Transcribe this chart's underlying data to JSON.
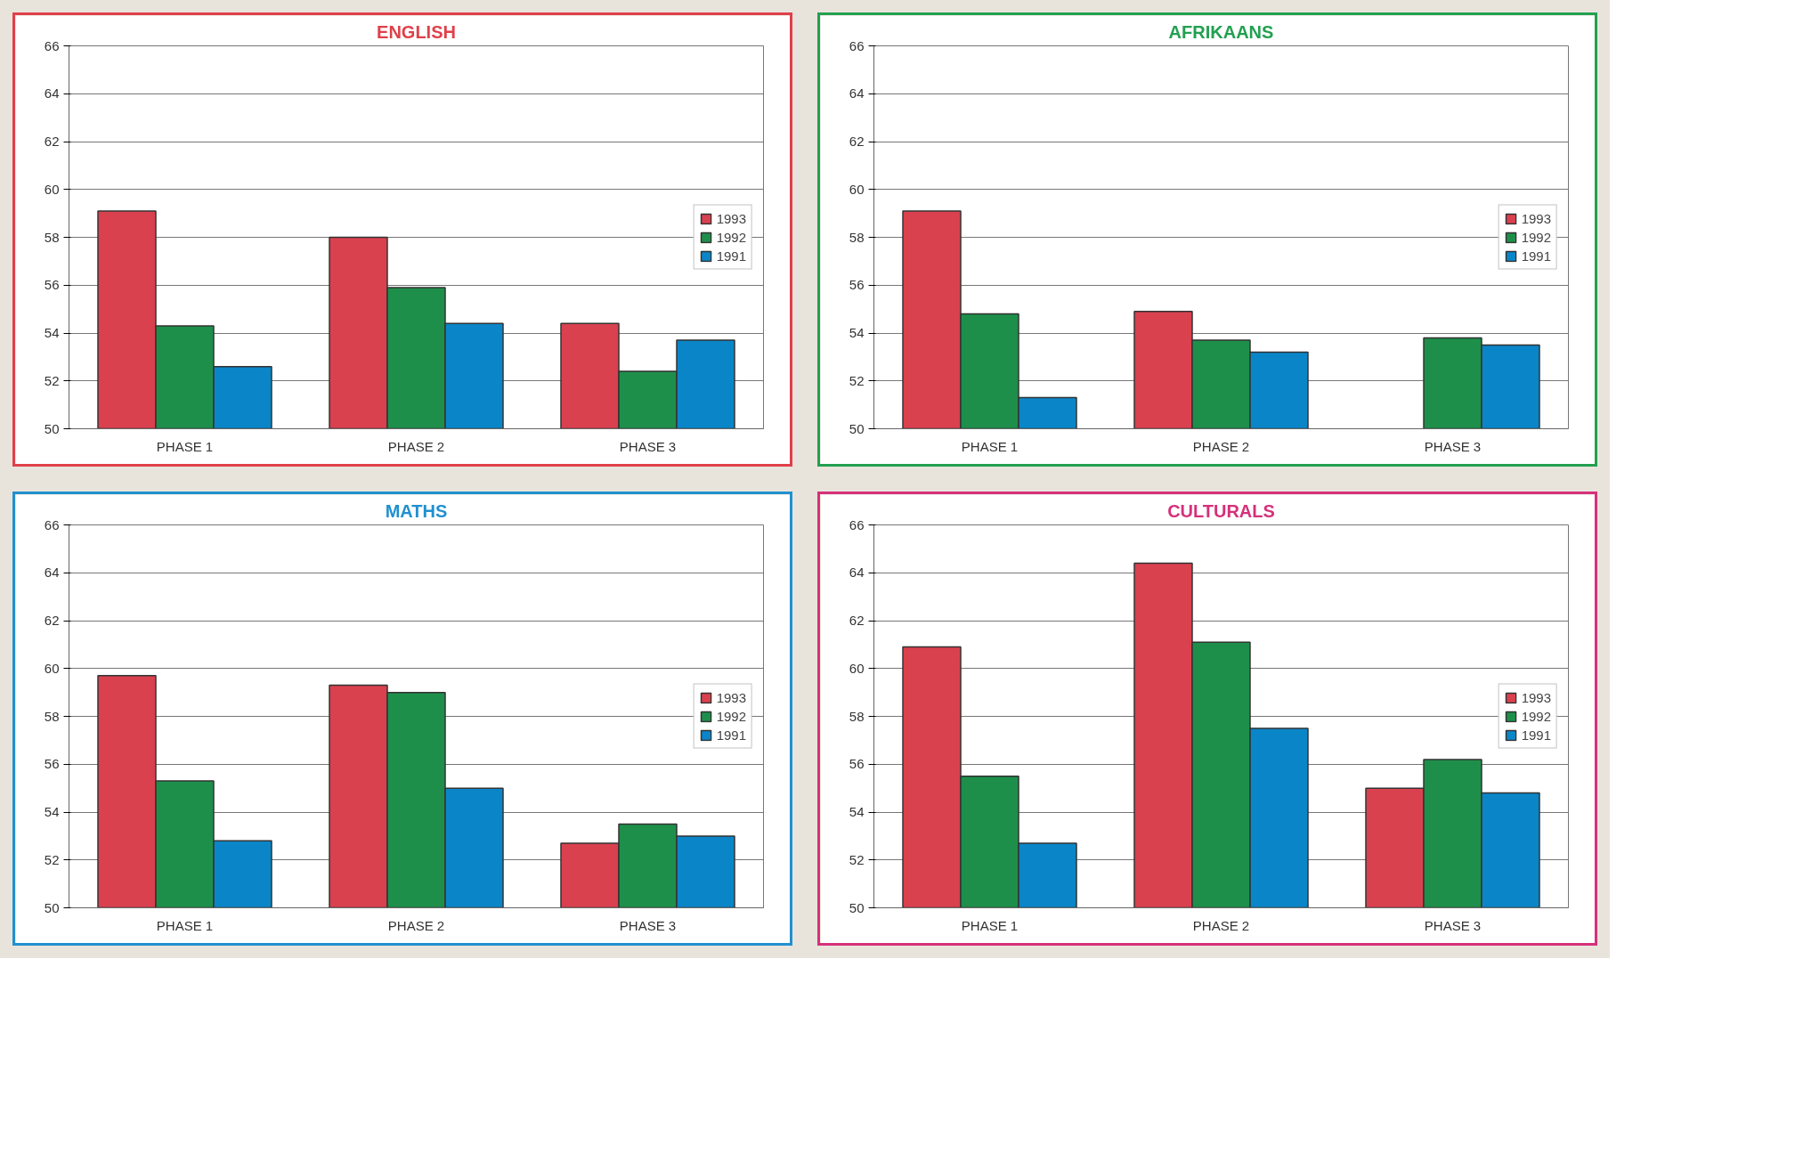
{
  "chart_data": [
    {
      "type": "bar",
      "title": "ENGLISH",
      "categories": [
        "PHASE 1",
        "PHASE 2",
        "PHASE 3"
      ],
      "ylim": [
        50,
        66
      ],
      "yticks": [
        50,
        52,
        54,
        56,
        58,
        60,
        62,
        64,
        66
      ],
      "grid": "y",
      "legend": "right",
      "series": [
        {
          "name": "1993",
          "color": "#d9414f",
          "values": [
            59.1,
            58.0,
            54.4
          ]
        },
        {
          "name": "1992",
          "color": "#1e8f4a",
          "values": [
            54.3,
            55.9,
            52.4
          ]
        },
        {
          "name": "1991",
          "color": "#0a86c8",
          "values": [
            52.6,
            54.4,
            53.7
          ]
        }
      ]
    },
    {
      "type": "bar",
      "title": "AFRIKAANS",
      "categories": [
        "PHASE 1",
        "PHASE 2",
        "PHASE 3"
      ],
      "ylim": [
        50,
        66
      ],
      "yticks": [
        50,
        52,
        54,
        56,
        58,
        60,
        62,
        64,
        66
      ],
      "grid": "y",
      "legend": "right",
      "series": [
        {
          "name": "1993",
          "color": "#d9414f",
          "values": [
            59.1,
            54.9,
            null
          ]
        },
        {
          "name": "1992",
          "color": "#1e8f4a",
          "values": [
            54.8,
            53.7,
            53.8
          ]
        },
        {
          "name": "1991",
          "color": "#0a86c8",
          "values": [
            51.3,
            53.2,
            53.5
          ]
        }
      ]
    },
    {
      "type": "bar",
      "title": "MATHS",
      "categories": [
        "PHASE 1",
        "PHASE 2",
        "PHASE 3"
      ],
      "ylim": [
        50,
        66
      ],
      "yticks": [
        50,
        52,
        54,
        56,
        58,
        60,
        62,
        64,
        66
      ],
      "grid": "y",
      "legend": "right",
      "series": [
        {
          "name": "1993",
          "color": "#d9414f",
          "values": [
            59.7,
            59.3,
            52.7
          ]
        },
        {
          "name": "1992",
          "color": "#1e8f4a",
          "values": [
            55.3,
            59.0,
            53.5
          ]
        },
        {
          "name": "1991",
          "color": "#0a86c8",
          "values": [
            52.8,
            55.0,
            53.0
          ]
        }
      ]
    },
    {
      "type": "bar",
      "title": "CULTURALS",
      "categories": [
        "PHASE 1",
        "PHASE 2",
        "PHASE 3"
      ],
      "ylim": [
        50,
        66
      ],
      "yticks": [
        50,
        52,
        54,
        56,
        58,
        60,
        62,
        64,
        66
      ],
      "grid": "y",
      "legend": "right",
      "series": [
        {
          "name": "1993",
          "color": "#d9414f",
          "values": [
            60.9,
            64.4,
            55.0
          ]
        },
        {
          "name": "1992",
          "color": "#1e8f4a",
          "values": [
            55.5,
            61.1,
            56.2
          ]
        },
        {
          "name": "1991",
          "color": "#0a86c8",
          "values": [
            52.7,
            57.5,
            54.8
          ]
        }
      ]
    }
  ]
}
